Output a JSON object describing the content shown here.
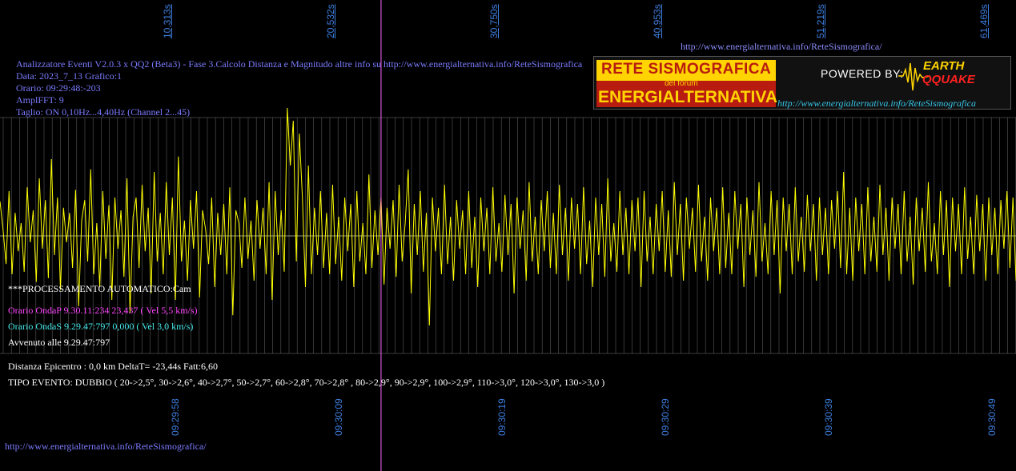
{
  "top_link": "http://www.energialternativa.info/ReteSismografica/",
  "bottom_link": "http://www.energialternativa.info/ReteSismografica/",
  "header": {
    "line1": "Analizzatore Eventi V2.0.3 x QQ2 (Beta3) - Fase 3.Calcolo Distanza e Magnitudo altre info su http://www.energialternativa.info/ReteSismografica",
    "line2": "Data: 2023_7_13 Grafico:1",
    "line3": "Orario: 09:29:48:-203",
    "line4": "AmplFFT: 9",
    "line5": "Taglio: ON 0,10Hz...4,40Hz      (Channel 2...45)"
  },
  "logo": {
    "line1": "RETE SISMOGRAFICA",
    "line2": "del forum",
    "line3": "ENERGIALTERNATIVA",
    "powered": "POWERED BY:",
    "brand_top": "EARTH",
    "brand_bottom": "QQUAKE",
    "url": "http://www.energialternativa.info/ReteSismografica"
  },
  "info": {
    "auto": "***PROCESSAMENTO AUTOMATICO:Cam",
    "onda_p": "Orario OndaP 9.30.11:234  23,437 ( Vel 5,5 km/s)",
    "onda_s": "Orario OndaS 9.29.47:797  0,000 ( Vel 3,0 km/s)",
    "avvenuto": "Avvenuto alle 9.29.47:797",
    "distanza": "Distanza Epicentro : 0,0 km DeltaT= -23,44s  Fatt:6,60",
    "tipo": "TIPO EVENTO: DUBBIO ( 20->2,5°, 30->2,6°, 40->2,7°, 50->2,7°, 60->2,8°, 70->2,8° , 80->2,9°, 90->2,9°, 100->2,9°, 110->3,0°, 120->3,0°, 130->3,0 )"
  },
  "colors": {
    "background": "#000000",
    "signal": "#ffff00",
    "grid": "#5a5a5a",
    "marker": "#ff66ff",
    "axis_labels": "#3d7fe0"
  },
  "chart_data": {
    "type": "line",
    "title": "",
    "x_top_ticks": [
      "10,313s",
      "20,532s",
      "30,750s",
      "40,953s",
      "51,219s",
      "61,469s"
    ],
    "x_bottom_ticks": [
      "09:29:58",
      "09:30:09",
      "09:30:19",
      "09:30:29",
      "09:30:39",
      "09:30:49"
    ],
    "xlim": [
      0,
      62.5
    ],
    "ylim": [
      -1,
      1
    ],
    "grid": true,
    "onda_p_marker_s": 23.44,
    "series": [
      {
        "values": [
          0.27,
          0.05,
          -0.22,
          0.35,
          -0.3,
          0.18,
          -0.12,
          0.1,
          -0.28,
          0.38,
          -0.05,
          0.2,
          -0.36,
          0.45,
          -0.1,
          0.28,
          -0.33,
          0.6,
          -0.15,
          0.3,
          -0.42,
          0.22,
          -0.05,
          0.18,
          -0.25,
          0.36,
          -0.55,
          0.12,
          0.28,
          -0.2,
          0.52,
          -0.3,
          0.1,
          -0.4,
          0.35,
          -0.18,
          0.24,
          -0.5,
          0.3,
          -0.1,
          0.2,
          -0.32,
          0.45,
          -0.6,
          0.15,
          0.3,
          -0.25,
          0.4,
          -0.12,
          0.22,
          -0.45,
          0.5,
          -0.2,
          0.18,
          -0.3,
          0.42,
          -0.15,
          0.3,
          -0.5,
          0.62,
          -0.2,
          0.12,
          -0.35,
          0.28,
          -0.1,
          0.35,
          -0.48,
          0.2,
          0.05,
          -0.22,
          0.3,
          -0.4,
          0.18,
          -0.15,
          0.25,
          -0.3,
          0.38,
          -0.62,
          0.2,
          0.1,
          -0.25,
          0.3,
          -0.18,
          0.12,
          -0.35,
          0.28,
          -0.1,
          0.22,
          -0.3,
          0.42,
          -0.5,
          0.35,
          -0.15,
          0.2,
          -0.28,
          1.0,
          0.55,
          0.9,
          -0.2,
          0.8,
          0.3,
          -0.4,
          0.55,
          -0.3,
          0.22,
          -0.15,
          0.35,
          -0.25,
          0.18,
          -0.3,
          0.4,
          -0.22,
          0.15,
          -0.35,
          0.3,
          -0.12,
          0.25,
          -0.4,
          0.35,
          -0.2,
          0.1,
          -0.3,
          0.48,
          -0.25,
          0.2,
          -0.15,
          0.3,
          -0.38,
          0.22,
          -0.1,
          0.28,
          -0.32,
          0.4,
          -0.2,
          0.1,
          0.52,
          -0.45,
          0.25,
          -0.15,
          0.35,
          -0.28,
          0.18,
          -0.7,
          0.3,
          -0.12,
          0.22,
          -0.3,
          0.4,
          -0.22,
          0.15,
          -0.35,
          0.28,
          -0.1,
          0.2,
          -0.3,
          0.35,
          -0.25,
          0.15,
          -0.4,
          0.3,
          -0.12,
          0.22,
          -0.3,
          0.38,
          -0.2,
          0.1,
          -0.28,
          0.32,
          -0.15,
          0.25,
          -0.45,
          0.3,
          -0.1,
          0.2,
          -0.35,
          0.42,
          -0.2,
          0.15,
          -0.3,
          0.28,
          -0.12,
          0.35,
          -0.25,
          0.18,
          -0.3,
          0.4,
          -0.15,
          0.22,
          -0.35,
          0.3,
          -0.1,
          0.25,
          -0.3,
          0.38,
          -0.22,
          0.12,
          -0.4,
          0.3,
          -0.15,
          0.25,
          -0.32,
          0.45,
          -0.2,
          0.1,
          -0.28,
          0.35,
          -0.15,
          0.22,
          -0.3,
          0.28,
          -0.12,
          0.3,
          -0.4,
          0.35,
          -0.2,
          0.15,
          -0.3,
          0.25,
          -0.12,
          0.35,
          -0.28,
          0.2,
          -0.32,
          0.42,
          -0.15,
          0.25,
          -0.35,
          0.3,
          -0.1,
          0.22,
          -0.28,
          0.4,
          -0.2,
          0.15,
          -0.35,
          0.3,
          -0.12,
          0.22,
          -0.3,
          0.38,
          -0.25,
          0.18,
          -0.3,
          0.35,
          -0.1,
          0.25,
          -0.4,
          0.3,
          -0.15,
          0.2,
          -0.32,
          0.42,
          -0.2,
          0.1,
          -0.3,
          0.35,
          -0.15,
          0.28,
          -0.45,
          0.3,
          -0.12,
          0.25,
          -0.3,
          0.38,
          -0.2,
          0.15,
          -0.28,
          0.32,
          -0.12,
          0.25,
          -0.35,
          0.3,
          -0.15,
          0.22,
          -0.3,
          0.28,
          -0.1,
          0.35,
          -0.25,
          0.5,
          -0.3,
          0.22,
          -0.35,
          0.3,
          -0.12,
          0.25,
          -0.3,
          0.38,
          -0.2,
          0.15,
          -0.28,
          0.4,
          -0.15,
          0.22,
          -0.35,
          0.3,
          -0.1,
          0.25,
          -0.3,
          0.35,
          -0.2,
          0.15,
          -0.38,
          0.3,
          -0.12,
          0.22,
          -0.28,
          0.42,
          -0.2,
          0.1,
          -0.3,
          0.35,
          -0.15,
          0.28,
          -0.4,
          0.3,
          -0.12,
          0.25,
          -0.3,
          0.38,
          -0.18,
          0.15,
          -0.3,
          0.32,
          -0.12,
          0.25,
          -0.35,
          0.3,
          -0.15,
          0.22,
          -0.3,
          0.28,
          -0.1,
          0.35,
          -0.25,
          0.3,
          -0.35
        ]
      }
    ]
  }
}
